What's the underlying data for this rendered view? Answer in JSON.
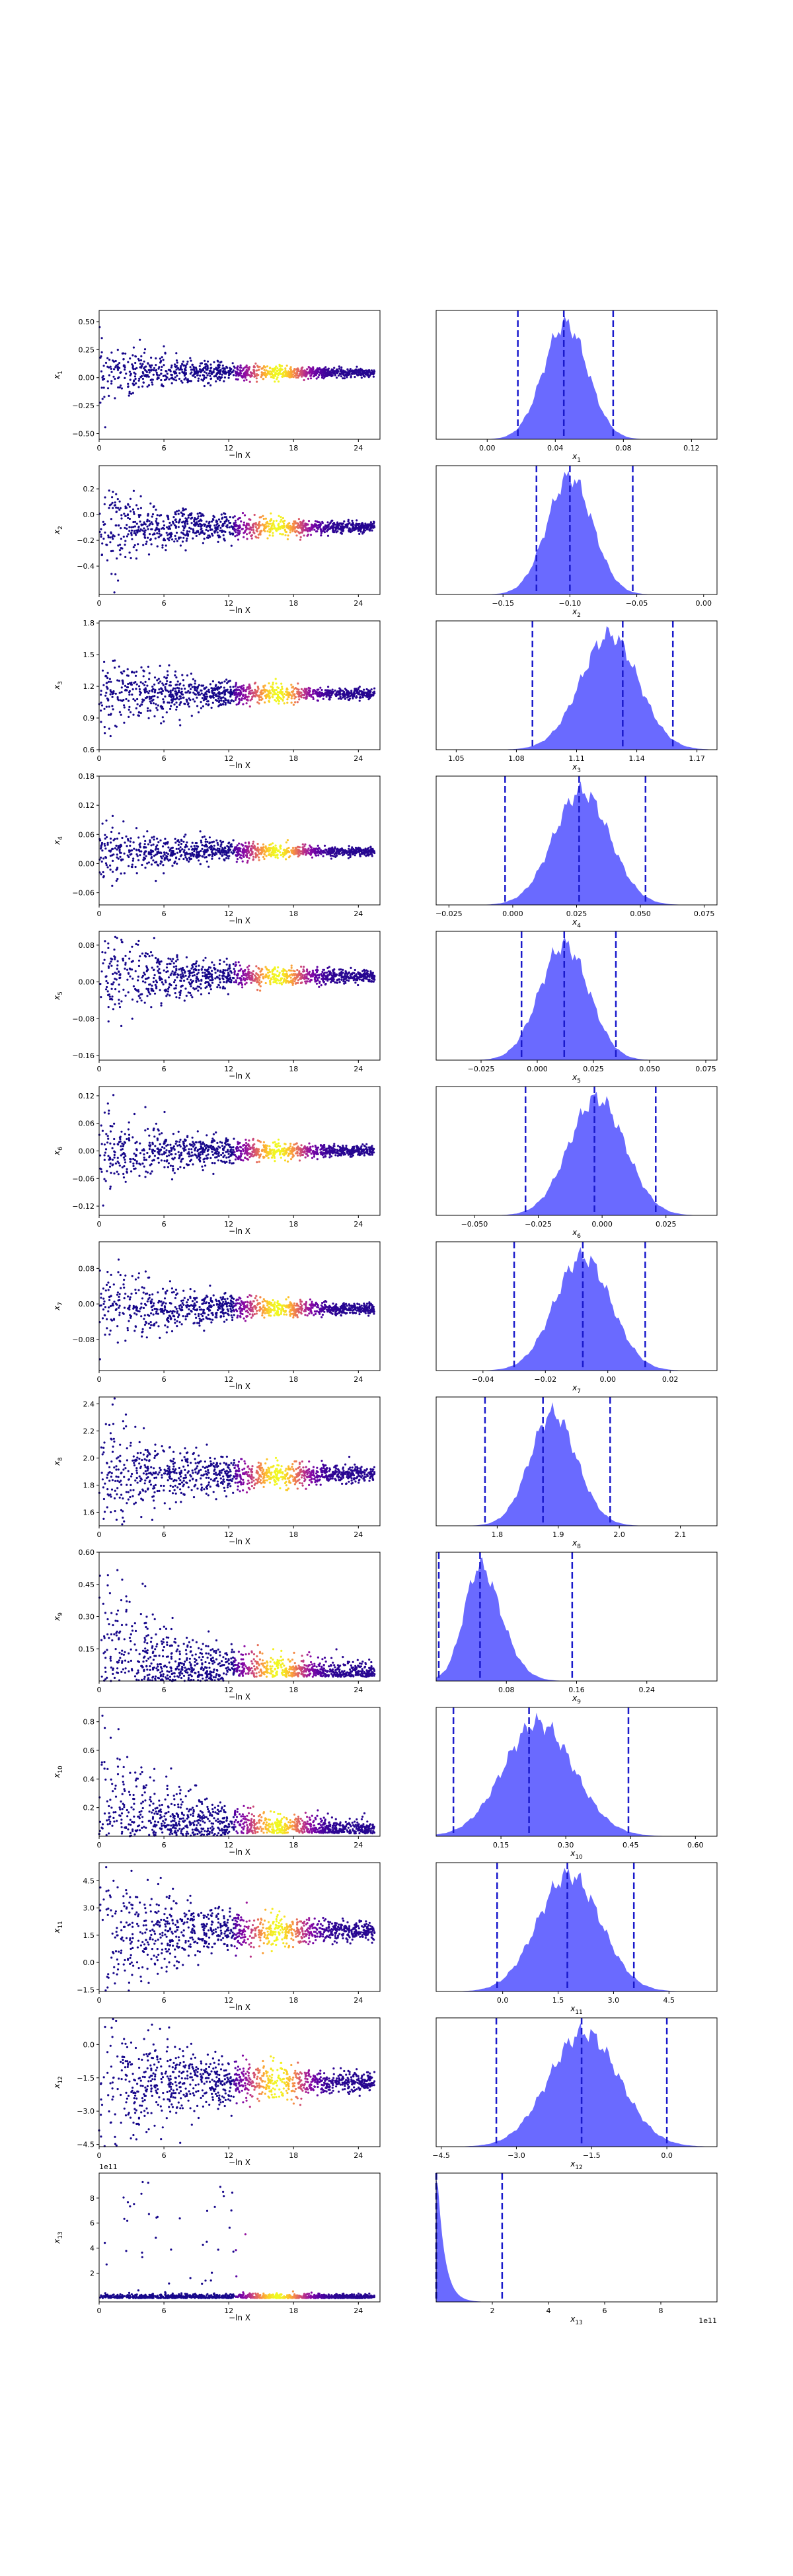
{
  "figure": {
    "xlabel_left": "−ln X",
    "dash_color": "#1a1acc",
    "fill_color": "#5a5aff",
    "colormap": "plasma"
  },
  "chart_data": [
    {
      "type": "scatter",
      "param": "x1",
      "ylabel": "x",
      "ysub": "1",
      "xlim": [
        0,
        26
      ],
      "xticks": [
        "0",
        "6",
        "12",
        "18",
        "24"
      ],
      "ylim": [
        -0.55,
        0.6
      ],
      "yticks": [
        {
          "v": 0.5,
          "l": "0.50"
        },
        {
          "v": 0.25,
          "l": "0.25"
        },
        {
          "v": 0.0,
          "l": "0.00"
        },
        {
          "v": -0.25,
          "l": "−0.25"
        },
        {
          "v": -0.5,
          "l": "−0.50"
        }
      ],
      "center": 0.045,
      "spread": 0.25,
      "offset_scale": 0.0,
      "heavy_top": 0
    },
    {
      "type": "area",
      "param": "x1",
      "xlabel": "x",
      "xsub": "1",
      "xlim": [
        -0.03,
        0.135
      ],
      "xticks": [
        {
          "v": 0.0,
          "l": "0.00"
        },
        {
          "v": 0.04,
          "l": "0.04"
        },
        {
          "v": 0.08,
          "l": "0.08"
        },
        {
          "v": 0.12,
          "l": "0.12"
        }
      ],
      "peak": 0.046,
      "width": 0.013,
      "skew": 0.0,
      "dashes": [
        0.018,
        0.045,
        0.074
      ]
    },
    {
      "type": "scatter",
      "param": "x2",
      "ylabel": "x",
      "ysub": "2",
      "xlim": [
        0,
        26
      ],
      "xticks": [
        "0",
        "6",
        "12",
        "18",
        "24"
      ],
      "ylim": [
        -0.62,
        0.38
      ],
      "yticks": [
        {
          "v": 0.2,
          "l": "0.2"
        },
        {
          "v": 0.0,
          "l": "0.0"
        },
        {
          "v": -0.2,
          "l": "−0.2"
        },
        {
          "v": -0.4,
          "l": "−0.4"
        }
      ],
      "center": -0.1,
      "spread": 0.3,
      "offset_scale": 0.0,
      "heavy_top": 0
    },
    {
      "type": "area",
      "param": "x2",
      "xlabel": "x",
      "xsub": "2",
      "xlim": [
        -0.2,
        0.01
      ],
      "xticks": [
        {
          "v": -0.15,
          "l": "−0.15"
        },
        {
          "v": -0.1,
          "l": "−0.10"
        },
        {
          "v": -0.05,
          "l": "−0.05"
        },
        {
          "v": 0.0,
          "l": "0.00"
        }
      ],
      "peak": -0.1,
      "width": 0.017,
      "skew": 0.0,
      "dashes": [
        -0.125,
        -0.1,
        -0.053
      ]
    },
    {
      "type": "scatter",
      "param": "x3",
      "ylabel": "x",
      "ysub": "3",
      "xlim": [
        0,
        26
      ],
      "xticks": [
        "0",
        "6",
        "12",
        "18",
        "24"
      ],
      "ylim": [
        0.6,
        1.82
      ],
      "yticks": [
        {
          "v": 1.8,
          "l": "1.8"
        },
        {
          "v": 1.5,
          "l": "1.5"
        },
        {
          "v": 1.2,
          "l": "1.2"
        },
        {
          "v": 0.9,
          "l": "0.9"
        },
        {
          "v": 0.6,
          "l": "0.6"
        }
      ],
      "center": 1.13,
      "spread": 0.35,
      "offset_scale": 0.0,
      "heavy_top": 0
    },
    {
      "type": "area",
      "param": "x3",
      "xlabel": "x",
      "xsub": "3",
      "xlim": [
        1.04,
        1.18
      ],
      "xticks": [
        {
          "v": 1.05,
          "l": "1.05"
        },
        {
          "v": 1.08,
          "l": "1.08"
        },
        {
          "v": 1.11,
          "l": "1.11"
        },
        {
          "v": 1.14,
          "l": "1.14"
        },
        {
          "v": 1.17,
          "l": "1.17"
        }
      ],
      "peak": 1.133,
      "width": 0.016,
      "skew": -0.6,
      "dashes": [
        1.088,
        1.133,
        1.158
      ]
    },
    {
      "type": "scatter",
      "param": "x4",
      "ylabel": "x",
      "ysub": "4",
      "xlim": [
        0,
        26
      ],
      "xticks": [
        "0",
        "6",
        "12",
        "18",
        "24"
      ],
      "ylim": [
        -0.085,
        0.18
      ],
      "yticks": [
        {
          "v": 0.18,
          "l": "0.18"
        },
        {
          "v": 0.12,
          "l": "0.12"
        },
        {
          "v": 0.06,
          "l": "0.06"
        },
        {
          "v": 0.0,
          "l": "0.00"
        },
        {
          "v": -0.06,
          "l": "−0.06"
        }
      ],
      "center": 0.025,
      "spread": 0.06,
      "offset_scale": 0.0,
      "heavy_top": 0
    },
    {
      "type": "area",
      "param": "x4",
      "xlabel": "x",
      "xsub": "4",
      "xlim": [
        -0.03,
        0.08
      ],
      "xticks": [
        {
          "v": -0.025,
          "l": "−0.025"
        },
        {
          "v": 0.0,
          "l": "0.000"
        },
        {
          "v": 0.025,
          "l": "0.025"
        },
        {
          "v": 0.05,
          "l": "0.050"
        },
        {
          "v": 0.075,
          "l": "0.075"
        }
      ],
      "peak": 0.027,
      "width": 0.011,
      "skew": 0.0,
      "dashes": [
        -0.003,
        0.026,
        0.052
      ]
    },
    {
      "type": "scatter",
      "param": "x5",
      "ylabel": "x",
      "ysub": "5",
      "xlim": [
        0,
        26
      ],
      "xticks": [
        "0",
        "6",
        "12",
        "18",
        "24"
      ],
      "ylim": [
        -0.17,
        0.11
      ],
      "yticks": [
        {
          "v": 0.08,
          "l": "0.08"
        },
        {
          "v": 0.0,
          "l": "0.00"
        },
        {
          "v": -0.08,
          "l": "−0.08"
        },
        {
          "v": -0.16,
          "l": "−0.16"
        }
      ],
      "center": 0.012,
      "spread": 0.09,
      "offset_scale": 0.0,
      "heavy_top": 0
    },
    {
      "type": "area",
      "param": "x5",
      "xlabel": "x",
      "xsub": "5",
      "xlim": [
        -0.045,
        0.08
      ],
      "xticks": [
        {
          "v": -0.025,
          "l": "−0.025"
        },
        {
          "v": 0.0,
          "l": "0.000"
        },
        {
          "v": 0.025,
          "l": "0.025"
        },
        {
          "v": 0.05,
          "l": "0.050"
        },
        {
          "v": 0.075,
          "l": "0.075"
        }
      ],
      "peak": 0.012,
      "width": 0.011,
      "skew": 0.0,
      "dashes": [
        -0.007,
        0.012,
        0.035
      ]
    },
    {
      "type": "scatter",
      "param": "x6",
      "ylabel": "x",
      "ysub": "6",
      "xlim": [
        0,
        26
      ],
      "xticks": [
        "0",
        "6",
        "12",
        "18",
        "24"
      ],
      "ylim": [
        -0.14,
        0.14
      ],
      "yticks": [
        {
          "v": 0.12,
          "l": "0.12"
        },
        {
          "v": 0.06,
          "l": "0.06"
        },
        {
          "v": 0.0,
          "l": "0.00"
        },
        {
          "v": -0.06,
          "l": "−0.06"
        },
        {
          "v": -0.12,
          "l": "−0.12"
        }
      ],
      "center": 0.0,
      "spread": 0.08,
      "offset_scale": 0.0,
      "heavy_top": 0
    },
    {
      "type": "area",
      "param": "x6",
      "xlabel": "x",
      "xsub": "6",
      "xlim": [
        -0.065,
        0.045
      ],
      "xticks": [
        {
          "v": -0.05,
          "l": "−0.050"
        },
        {
          "v": -0.025,
          "l": "−0.025"
        },
        {
          "v": 0.0,
          "l": "0.000"
        },
        {
          "v": 0.025,
          "l": "0.025"
        }
      ],
      "peak": -0.002,
      "width": 0.011,
      "skew": 0.0,
      "dashes": [
        -0.03,
        -0.003,
        0.021
      ]
    },
    {
      "type": "scatter",
      "param": "x7",
      "ylabel": "x",
      "ysub": "7",
      "xlim": [
        0,
        26
      ],
      "xticks": [
        "0",
        "6",
        "12",
        "18",
        "24"
      ],
      "ylim": [
        -0.15,
        0.14
      ],
      "yticks": [
        {
          "v": 0.08,
          "l": "0.08"
        },
        {
          "v": 0.0,
          "l": "0.00"
        },
        {
          "v": -0.08,
          "l": "−0.08"
        }
      ],
      "center": -0.01,
      "spread": 0.085,
      "offset_scale": 0.0,
      "heavy_top": 0
    },
    {
      "type": "area",
      "param": "x7",
      "xlabel": "x",
      "xsub": "7",
      "xlim": [
        -0.055,
        0.035
      ],
      "xticks": [
        {
          "v": -0.04,
          "l": "−0.04"
        },
        {
          "v": -0.02,
          "l": "−0.02"
        },
        {
          "v": 0.0,
          "l": "0.00"
        },
        {
          "v": 0.02,
          "l": "0.02"
        }
      ],
      "peak": -0.008,
      "width": 0.009,
      "skew": 0.0,
      "dashes": [
        -0.03,
        -0.008,
        0.012
      ]
    },
    {
      "type": "scatter",
      "param": "x8",
      "ylabel": "x",
      "ysub": "8",
      "xlim": [
        0,
        26
      ],
      "xticks": [
        "0",
        "6",
        "12",
        "18",
        "24"
      ],
      "ylim": [
        1.5,
        2.45
      ],
      "yticks": [
        {
          "v": 2.4,
          "l": "2.4"
        },
        {
          "v": 2.2,
          "l": "2.2"
        },
        {
          "v": 2.0,
          "l": "2.0"
        },
        {
          "v": 1.8,
          "l": "1.8"
        },
        {
          "v": 1.6,
          "l": "1.6"
        }
      ],
      "center": 1.88,
      "spread": 0.4,
      "offset_scale": 0.0,
      "heavy_top": 0
    },
    {
      "type": "area",
      "param": "x8",
      "xlabel": "x",
      "xsub": "8",
      "xlim": [
        1.7,
        2.16
      ],
      "xticks": [
        {
          "v": 1.8,
          "l": "1.8"
        },
        {
          "v": 1.9,
          "l": "1.9"
        },
        {
          "v": 2.0,
          "l": "2.0"
        },
        {
          "v": 2.1,
          "l": "2.1"
        }
      ],
      "peak": 1.87,
      "width": 0.045,
      "skew": 0.8,
      "dashes": [
        1.78,
        1.875,
        1.985
      ]
    },
    {
      "type": "scatter",
      "param": "x9",
      "ylabel": "x",
      "ysub": "9",
      "xlim": [
        0,
        26
      ],
      "xticks": [
        "0",
        "6",
        "12",
        "18",
        "24"
      ],
      "ylim": [
        0.0,
        0.6
      ],
      "yticks": [
        {
          "v": 0.6,
          "l": "0.60"
        },
        {
          "v": 0.45,
          "l": "0.45"
        },
        {
          "v": 0.3,
          "l": "0.30"
        },
        {
          "v": 0.15,
          "l": "0.15"
        }
      ],
      "center": 0.05,
      "spread": 0.35,
      "offset_scale": 0.0,
      "heavy_top": 1
    },
    {
      "type": "area",
      "param": "x9",
      "xlabel": "x",
      "xsub": "9",
      "xlim": [
        0.0,
        0.32
      ],
      "xticks": [
        {
          "v": 0.08,
          "l": "0.08"
        },
        {
          "v": 0.16,
          "l": "0.16"
        },
        {
          "v": 0.24,
          "l": "0.24"
        }
      ],
      "peak": 0.035,
      "width": 0.03,
      "skew": 1.6,
      "dashes": [
        0.003,
        0.05,
        0.155
      ]
    },
    {
      "type": "scatter",
      "param": "x10",
      "ylabel": "x",
      "ysub": "10",
      "xlim": [
        0,
        26
      ],
      "xticks": [
        "0",
        "6",
        "12",
        "18",
        "24"
      ],
      "ylim": [
        0.0,
        0.9
      ],
      "yticks": [
        {
          "v": 0.8,
          "l": "0.8"
        },
        {
          "v": 0.6,
          "l": "0.6"
        },
        {
          "v": 0.4,
          "l": "0.4"
        },
        {
          "v": 0.2,
          "l": "0.2"
        }
      ],
      "center": 0.25,
      "spread": 0.5,
      "offset_scale": 0.0,
      "heavy_top": 1
    },
    {
      "type": "area",
      "param": "x10",
      "xlabel": "x",
      "xsub": "10",
      "xlim": [
        0.0,
        0.65
      ],
      "xticks": [
        {
          "v": 0.15,
          "l": "0.15"
        },
        {
          "v": 0.3,
          "l": "0.30"
        },
        {
          "v": 0.45,
          "l": "0.45"
        },
        {
          "v": 0.6,
          "l": "0.60"
        }
      ],
      "peak": 0.2,
      "width": 0.09,
      "skew": 0.6,
      "dashes": [
        0.04,
        0.215,
        0.445
      ]
    },
    {
      "type": "scatter",
      "param": "x11",
      "ylabel": "x",
      "ysub": "11",
      "xlim": [
        0,
        26
      ],
      "xticks": [
        "0",
        "6",
        "12",
        "18",
        "24"
      ],
      "ylim": [
        -1.6,
        5.5
      ],
      "yticks": [
        {
          "v": 4.5,
          "l": "4.5"
        },
        {
          "v": 3.0,
          "l": "3.0"
        },
        {
          "v": 1.5,
          "l": "1.5"
        },
        {
          "v": 0.0,
          "l": "0.0"
        },
        {
          "v": -1.5,
          "l": "−1.5"
        }
      ],
      "center": 1.7,
      "spread": 3.6,
      "offset_scale": 0.0,
      "heavy_top": 0
    },
    {
      "type": "area",
      "param": "x11",
      "xlabel": "x",
      "xsub": "11",
      "xlim": [
        -1.8,
        5.8
      ],
      "xticks": [
        {
          "v": 0.0,
          "l": "0.0"
        },
        {
          "v": 1.5,
          "l": "1.5"
        },
        {
          "v": 3.0,
          "l": "3.0"
        },
        {
          "v": 4.5,
          "l": "4.5"
        }
      ],
      "peak": 1.8,
      "width": 0.85,
      "skew": 0.0,
      "dashes": [
        -0.15,
        1.75,
        3.55
      ]
    },
    {
      "type": "scatter",
      "param": "x12",
      "ylabel": "x",
      "ysub": "12",
      "xlim": [
        0,
        26
      ],
      "xticks": [
        "0",
        "6",
        "12",
        "18",
        "24"
      ],
      "ylim": [
        -4.6,
        1.2
      ],
      "yticks": [
        {
          "v": 0.0,
          "l": "0.0"
        },
        {
          "v": -1.5,
          "l": "−1.5"
        },
        {
          "v": -3.0,
          "l": "−3.0"
        },
        {
          "v": -4.5,
          "l": "−4.5"
        }
      ],
      "center": -1.7,
      "spread": 3.2,
      "offset_scale": 0.0,
      "heavy_top": 0
    },
    {
      "type": "area",
      "param": "x12",
      "xlabel": "x",
      "xsub": "12",
      "xlim": [
        -4.6,
        1.0
      ],
      "xticks": [
        {
          "v": -4.5,
          "l": "−4.5"
        },
        {
          "v": -3.0,
          "l": "−3.0"
        },
        {
          "v": -1.5,
          "l": "−1.5"
        },
        {
          "v": 0.0,
          "l": "0.0"
        }
      ],
      "peak": -1.65,
      "width": 0.7,
      "skew": 0.0,
      "dashes": [
        -3.4,
        -1.7,
        0.0
      ]
    },
    {
      "type": "scatter",
      "param": "x13",
      "ylabel": "x",
      "ysub": "13",
      "xlim": [
        0,
        26
      ],
      "xticks": [
        "0",
        "6",
        "12",
        "18",
        "24"
      ],
      "ylim": [
        -0.3,
        10.0
      ],
      "yticks": [
        {
          "v": 8,
          "l": "8"
        },
        {
          "v": 6,
          "l": "6"
        },
        {
          "v": 4,
          "l": "4"
        },
        {
          "v": 2,
          "l": "2"
        }
      ],
      "offset_label": "1e11",
      "center": 0.0,
      "spread": 0.1,
      "offset_scale": 1.0,
      "heavy_top": 2
    },
    {
      "type": "area",
      "param": "x13",
      "xlabel": "x",
      "xsub": "13",
      "xlim": [
        0.0,
        10.0
      ],
      "xticks": [
        {
          "v": 2,
          "l": "2"
        },
        {
          "v": 4,
          "l": "4"
        },
        {
          "v": 6,
          "l": "6"
        },
        {
          "v": 8,
          "l": "8"
        }
      ],
      "offset_label": "1e11",
      "peak": 0.05,
      "width": 0.12,
      "skew": 3.0,
      "dashes": [
        0.0,
        0.01,
        2.35
      ]
    }
  ]
}
